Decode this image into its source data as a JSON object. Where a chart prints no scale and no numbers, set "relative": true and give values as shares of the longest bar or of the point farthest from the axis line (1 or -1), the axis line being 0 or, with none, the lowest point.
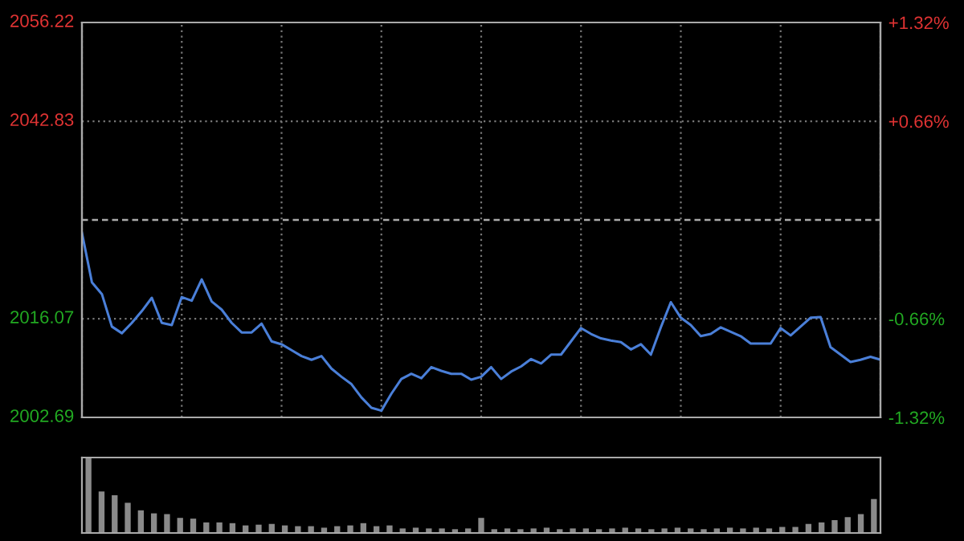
{
  "chart_data": [
    {
      "type": "line",
      "categories": [
        null,
        null,
        null,
        null,
        null,
        null,
        null,
        null,
        null,
        null,
        null,
        null,
        null,
        null,
        null,
        null,
        null,
        null,
        null,
        null,
        null,
        null,
        null,
        null,
        null,
        null,
        null,
        null,
        null,
        null,
        null,
        null,
        null,
        null,
        null,
        null,
        null,
        null,
        null,
        null,
        null,
        null,
        null,
        null,
        null,
        null,
        null,
        null,
        null,
        null,
        null,
        null,
        null,
        null,
        null,
        null,
        null,
        null,
        null,
        null,
        null,
        null,
        null,
        null,
        null,
        null,
        null,
        null,
        null,
        null,
        null,
        null,
        null,
        null,
        null,
        null,
        null,
        null,
        null,
        null,
        null
      ],
      "series": [
        {
          "color": "#4a7fd8",
          "values": [
            2027.7,
            2021.0,
            2019.4,
            2015.0,
            2014.1,
            2015.5,
            2017.1,
            2018.9,
            2015.5,
            2015.2,
            2019.0,
            2018.5,
            2021.4,
            2018.4,
            2017.3,
            2015.5,
            2014.2,
            2014.2,
            2015.4,
            2013.0,
            2012.6,
            2011.8,
            2011.0,
            2010.5,
            2011.0,
            2009.3,
            2008.2,
            2007.2,
            2005.4,
            2004.0,
            2003.6,
            2005.9,
            2007.9,
            2008.6,
            2008.0,
            2009.5,
            2009.0,
            2008.6,
            2008.6,
            2007.8,
            2008.2,
            2009.5,
            2007.9,
            2008.9,
            2009.6,
            2010.6,
            2010.0,
            2011.2,
            2011.2,
            2013.0,
            2014.8,
            2014.0,
            2013.4,
            2013.1,
            2012.9,
            2011.9,
            2012.6,
            2011.2,
            2014.9,
            2018.3,
            2016.2,
            2015.2,
            2013.7,
            2014.0,
            2014.9,
            2014.3,
            2013.7,
            2012.7,
            2012.7,
            2012.7,
            2014.8,
            2013.8,
            2015.0,
            2016.2,
            2016.3,
            2012.2,
            2011.2,
            2010.2,
            2010.5,
            2010.9,
            2010.5
          ]
        }
      ],
      "ylim": [
        2002.69,
        2056.22
      ],
      "yticks": [
        2002.69,
        2016.07,
        2042.83,
        2056.22
      ],
      "y2lim": [
        -1.32,
        1.32
      ],
      "y2ticks": [
        {
          "value": -1.32,
          "label": "-1.32%"
        },
        {
          "value": -0.66,
          "label": "-0.66%"
        },
        {
          "value": 0.66,
          "label": "+0.66%"
        },
        {
          "value": 1.32,
          "label": "+1.32%"
        }
      ],
      "ref_lines": [
        {
          "axis": "y",
          "value": 2029.45,
          "line_style": "dashed"
        }
      ],
      "grid": true,
      "marker": "none",
      "line_style": "solid",
      "tick_labels": "y"
    },
    {
      "type": "bar",
      "relative": true,
      "color": "#8a8a8a",
      "tick_labels": false,
      "categories": [
        null,
        null,
        null,
        null,
        null,
        null,
        null,
        null,
        null,
        null,
        null,
        null,
        null,
        null,
        null,
        null,
        null,
        null,
        null,
        null,
        null,
        null,
        null,
        null,
        null,
        null,
        null,
        null,
        null,
        null,
        null,
        null,
        null,
        null,
        null,
        null,
        null,
        null,
        null,
        null,
        null,
        null,
        null,
        null,
        null,
        null,
        null,
        null,
        null,
        null,
        null,
        null,
        null,
        null,
        null,
        null,
        null,
        null,
        null,
        null,
        null
      ],
      "values": [
        1.0,
        0.55,
        0.5,
        0.4,
        0.3,
        0.26,
        0.25,
        0.2,
        0.19,
        0.14,
        0.14,
        0.13,
        0.1,
        0.11,
        0.12,
        0.1,
        0.09,
        0.09,
        0.07,
        0.09,
        0.1,
        0.13,
        0.09,
        0.1,
        0.06,
        0.07,
        0.06,
        0.06,
        0.05,
        0.06,
        0.2,
        0.05,
        0.06,
        0.05,
        0.06,
        0.07,
        0.05,
        0.06,
        0.06,
        0.05,
        0.06,
        0.07,
        0.06,
        0.05,
        0.06,
        0.07,
        0.06,
        0.05,
        0.06,
        0.07,
        0.06,
        0.07,
        0.06,
        0.08,
        0.08,
        0.12,
        0.14,
        0.17,
        0.21,
        0.25,
        0.45
      ]
    }
  ]
}
